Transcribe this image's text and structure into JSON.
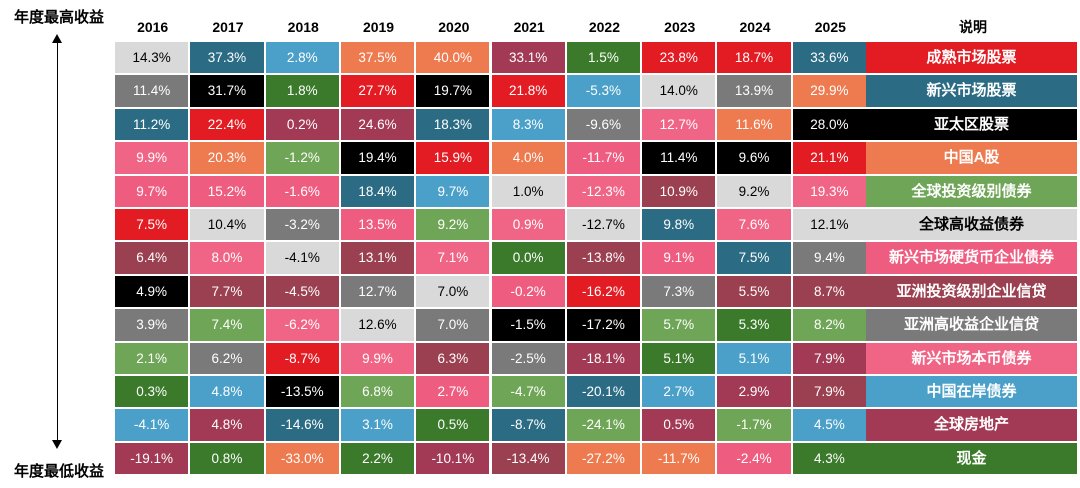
{
  "chart_data": {
    "type": "table",
    "title": "",
    "top_label": "年度最高收益",
    "bottom_label": "年度最低收益",
    "legend_header": "说明",
    "years": [
      "2016",
      "2017",
      "2018",
      "2019",
      "2020",
      "2021",
      "2022",
      "2023",
      "2024",
      "2025"
    ],
    "assets": [
      {
        "name": "成熟市场股票",
        "color": "#E31B23",
        "text_color": "#ffffff"
      },
      {
        "name": "新兴市场股票",
        "color": "#2B6C84",
        "text_color": "#ffffff"
      },
      {
        "name": "亚太区股票",
        "color": "#000000",
        "text_color": "#ffffff"
      },
      {
        "name": "中国A股",
        "color": "#EE7A50",
        "text_color": "#ffffff"
      },
      {
        "name": "全球投资级别债券",
        "color": "#6FA556",
        "text_color": "#ffffff"
      },
      {
        "name": "全球高收益债券",
        "color": "#D9D9D9",
        "text_color": "#000000"
      },
      {
        "name": "新兴市场硬货币企业债券",
        "color": "#EE5C80",
        "text_color": "#ffffff"
      },
      {
        "name": "亚洲投资级别企业信贷",
        "color": "#9B4050",
        "text_color": "#ffffff"
      },
      {
        "name": "亚洲高收益企业信贷",
        "color": "#7A7A7A",
        "text_color": "#ffffff"
      },
      {
        "name": "新兴市场本币债券",
        "color": "#F06585",
        "text_color": "#ffffff"
      },
      {
        "name": "中国在岸债券",
        "color": "#4AA0C8",
        "text_color": "#ffffff"
      },
      {
        "name": "全球房地产",
        "color": "#A23A55",
        "text_color": "#ffffff"
      },
      {
        "name": "现金",
        "color": "#3A7A2A",
        "text_color": "#ffffff"
      }
    ],
    "columns": [
      [
        {
          "a": "全球高收益债券",
          "v": "14.3%"
        },
        {
          "a": "亚洲高收益企业信贷",
          "v": "11.4%"
        },
        {
          "a": "新兴市场股票",
          "v": "11.2%"
        },
        {
          "a": "新兴市场本币债券",
          "v": "9.9%"
        },
        {
          "a": "新兴市场硬货币企业债券",
          "v": "9.7%"
        },
        {
          "a": "成熟市场股票",
          "v": "7.5%"
        },
        {
          "a": "亚洲投资级别企业信贷",
          "v": "6.4%"
        },
        {
          "a": "亚太区股票",
          "v": "4.9%"
        },
        {
          "a": "亚洲高收益企业信贷",
          "v": "3.9%"
        },
        {
          "a": "全球投资级别债券",
          "v": "2.1%"
        },
        {
          "a": "现金",
          "v": "0.3%"
        },
        {
          "a": "中国在岸债券",
          "v": "-4.1%"
        },
        {
          "a": "全球房地产",
          "v": "-19.1%"
        }
      ],
      [
        {
          "a": "新兴市场股票",
          "v": "37.3%"
        },
        {
          "a": "亚太区股票",
          "v": "31.7%"
        },
        {
          "a": "成熟市场股票",
          "v": "22.4%"
        },
        {
          "a": "中国A股",
          "v": "20.3%"
        },
        {
          "a": "新兴市场硬货币企业债券",
          "v": "15.2%"
        },
        {
          "a": "全球高收益债券",
          "v": "10.4%"
        },
        {
          "a": "新兴市场本币债券",
          "v": "8.0%"
        },
        {
          "a": "亚洲投资级别企业信贷",
          "v": "7.7%"
        },
        {
          "a": "全球投资级别债券",
          "v": "7.4%"
        },
        {
          "a": "亚洲高收益企业信贷",
          "v": "6.2%"
        },
        {
          "a": "中国在岸债券",
          "v": "4.8%"
        },
        {
          "a": "全球房地产",
          "v": "4.8%"
        },
        {
          "a": "现金",
          "v": "0.8%"
        }
      ],
      [
        {
          "a": "中国在岸债券",
          "v": "2.8%"
        },
        {
          "a": "现金",
          "v": "1.8%"
        },
        {
          "a": "全球房地产",
          "v": "0.2%"
        },
        {
          "a": "全球投资级别债券",
          "v": "-1.2%"
        },
        {
          "a": "新兴市场硬货币企业债券",
          "v": "-1.6%"
        },
        {
          "a": "亚洲高收益企业信贷",
          "v": "-3.2%"
        },
        {
          "a": "全球高收益债券",
          "v": "-4.1%"
        },
        {
          "a": "亚洲投资级别企业信贷",
          "v": "-4.5%"
        },
        {
          "a": "新兴市场本币债券",
          "v": "-6.2%"
        },
        {
          "a": "成熟市场股票",
          "v": "-8.7%"
        },
        {
          "a": "亚太区股票",
          "v": "-13.5%"
        },
        {
          "a": "新兴市场股票",
          "v": "-14.6%"
        },
        {
          "a": "中国A股",
          "v": "-33.0%"
        }
      ],
      [
        {
          "a": "中国A股",
          "v": "37.5%"
        },
        {
          "a": "成熟市场股票",
          "v": "27.7%"
        },
        {
          "a": "全球房地产",
          "v": "24.6%"
        },
        {
          "a": "亚太区股票",
          "v": "19.4%"
        },
        {
          "a": "新兴市场股票",
          "v": "18.4%"
        },
        {
          "a": "新兴市场硬货币企业债券",
          "v": "13.5%"
        },
        {
          "a": "亚洲投资级别企业信贷",
          "v": "13.1%"
        },
        {
          "a": "亚洲高收益企业信贷",
          "v": "12.7%"
        },
        {
          "a": "全球高收益债券",
          "v": "12.6%"
        },
        {
          "a": "新兴市场本币债券",
          "v": "9.9%"
        },
        {
          "a": "全球投资级别债券",
          "v": "6.8%"
        },
        {
          "a": "中国在岸债券",
          "v": "3.1%"
        },
        {
          "a": "现金",
          "v": "2.2%"
        }
      ],
      [
        {
          "a": "中国A股",
          "v": "40.0%"
        },
        {
          "a": "亚太区股票",
          "v": "19.7%"
        },
        {
          "a": "新兴市场股票",
          "v": "18.3%"
        },
        {
          "a": "成熟市场股票",
          "v": "15.9%"
        },
        {
          "a": "中国在岸债券",
          "v": "9.7%"
        },
        {
          "a": "全球投资级别债券",
          "v": "9.2%"
        },
        {
          "a": "新兴市场本币债券",
          "v": "7.1%"
        },
        {
          "a": "全球高收益债券",
          "v": "7.0%"
        },
        {
          "a": "亚洲高收益企业信贷",
          "v": "7.0%"
        },
        {
          "a": "亚洲投资级别企业信贷",
          "v": "6.3%"
        },
        {
          "a": "新兴市场硬货币企业债券",
          "v": "2.7%"
        },
        {
          "a": "现金",
          "v": "0.5%"
        },
        {
          "a": "全球房地产",
          "v": "-10.1%"
        }
      ],
      [
        {
          "a": "全球房地产",
          "v": "33.1%"
        },
        {
          "a": "成熟市场股票",
          "v": "21.8%"
        },
        {
          "a": "中国在岸债券",
          "v": "8.3%"
        },
        {
          "a": "中国A股",
          "v": "4.0%"
        },
        {
          "a": "全球高收益债券",
          "v": "1.0%"
        },
        {
          "a": "新兴市场本币债券",
          "v": "0.9%"
        },
        {
          "a": "现金",
          "v": "0.0%"
        },
        {
          "a": "新兴市场硬货币企业债券",
          "v": "-0.2%"
        },
        {
          "a": "亚太区股票",
          "v": "-1.5%"
        },
        {
          "a": "亚洲高收益企业信贷",
          "v": "-2.5%"
        },
        {
          "a": "全球投资级别债券",
          "v": "-4.7%"
        },
        {
          "a": "新兴市场股票",
          "v": "-8.7%"
        },
        {
          "a": "亚洲投资级别企业信贷",
          "v": "-13.4%"
        }
      ],
      [
        {
          "a": "现金",
          "v": "1.5%"
        },
        {
          "a": "中国在岸债券",
          "v": "-5.3%"
        },
        {
          "a": "亚洲高收益企业信贷",
          "v": "-9.6%"
        },
        {
          "a": "新兴市场硬货币企业债券",
          "v": "-11.7%"
        },
        {
          "a": "新兴市场本币债券",
          "v": "-12.3%"
        },
        {
          "a": "全球高收益债券",
          "v": "-12.7%"
        },
        {
          "a": "亚洲投资级别企业信贷",
          "v": "-13.8%"
        },
        {
          "a": "成熟市场股票",
          "v": "-16.2%"
        },
        {
          "a": "亚太区股票",
          "v": "-17.2%"
        },
        {
          "a": "全球房地产",
          "v": "-18.1%"
        },
        {
          "a": "新兴市场股票",
          "v": "-20.1%"
        },
        {
          "a": "全球投资级别债券",
          "v": "-24.1%"
        },
        {
          "a": "中国A股",
          "v": "-27.2%"
        }
      ],
      [
        {
          "a": "成熟市场股票",
          "v": "23.8%"
        },
        {
          "a": "全球高收益债券",
          "v": "14.0%"
        },
        {
          "a": "新兴市场本币债券",
          "v": "12.7%"
        },
        {
          "a": "亚太区股票",
          "v": "11.4%"
        },
        {
          "a": "亚洲投资级别企业信贷",
          "v": "10.9%"
        },
        {
          "a": "新兴市场股票",
          "v": "9.8%"
        },
        {
          "a": "新兴市场硬货币企业债券",
          "v": "9.1%"
        },
        {
          "a": "亚洲高收益企业信贷",
          "v": "7.3%"
        },
        {
          "a": "全球投资级别债券",
          "v": "5.7%"
        },
        {
          "a": "现金",
          "v": "5.1%"
        },
        {
          "a": "中国在岸债券",
          "v": "2.7%"
        },
        {
          "a": "全球房地产",
          "v": "0.5%"
        },
        {
          "a": "中国A股",
          "v": "-11.7%"
        }
      ],
      [
        {
          "a": "成熟市场股票",
          "v": "18.7%"
        },
        {
          "a": "亚洲高收益企业信贷",
          "v": "13.9%"
        },
        {
          "a": "中国A股",
          "v": "11.6%"
        },
        {
          "a": "亚太区股票",
          "v": "9.6%"
        },
        {
          "a": "全球高收益债券",
          "v": "9.2%"
        },
        {
          "a": "新兴市场本币债券",
          "v": "7.6%"
        },
        {
          "a": "新兴市场股票",
          "v": "7.5%"
        },
        {
          "a": "亚洲投资级别企业信贷",
          "v": "5.5%"
        },
        {
          "a": "现金",
          "v": "5.3%"
        },
        {
          "a": "中国在岸债券",
          "v": "5.1%"
        },
        {
          "a": "全球房地产",
          "v": "2.9%"
        },
        {
          "a": "全球投资级别债券",
          "v": "-1.7%"
        },
        {
          "a": "新兴市场硬货币企业债券",
          "v": "-2.4%"
        }
      ],
      [
        {
          "a": "新兴市场股票",
          "v": "33.6%"
        },
        {
          "a": "中国A股",
          "v": "29.9%"
        },
        {
          "a": "亚太区股票",
          "v": "28.0%"
        },
        {
          "a": "成熟市场股票",
          "v": "21.1%"
        },
        {
          "a": "新兴市场本币债券",
          "v": "19.3%"
        },
        {
          "a": "全球高收益债券",
          "v": "12.1%"
        },
        {
          "a": "亚洲高收益企业信贷",
          "v": "9.4%"
        },
        {
          "a": "亚洲投资级别企业信贷",
          "v": "8.7%"
        },
        {
          "a": "全球投资级别债券",
          "v": "8.2%"
        },
        {
          "a": "全球房地产",
          "v": "7.9%"
        },
        {
          "a": "亚洲投资级别企业信贷",
          "v": "7.9%"
        },
        {
          "a": "中国在岸债券",
          "v": "4.5%"
        },
        {
          "a": "现金",
          "v": "4.3%"
        }
      ]
    ]
  }
}
